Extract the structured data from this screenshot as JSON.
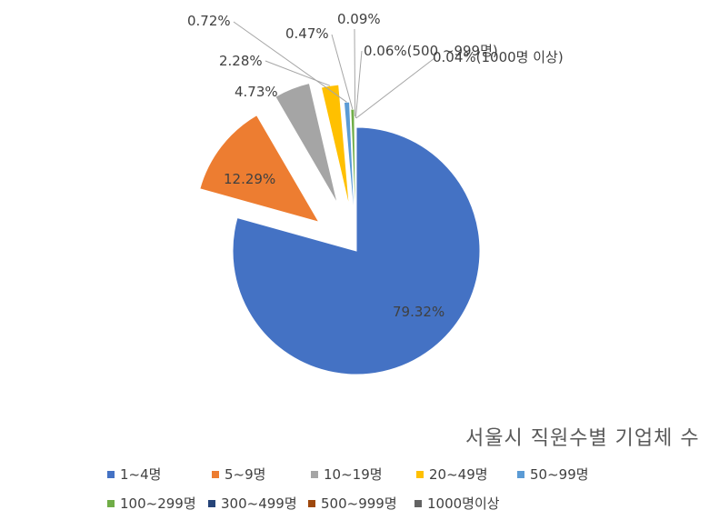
{
  "chart_data": {
    "type": "pie",
    "title": "서울시 직원수별 기업체 수",
    "categories": [
      "1~4명",
      "5~9명",
      "10~19명",
      "20~49명",
      "50~99명",
      "100~299명",
      "300~499명",
      "500~999명",
      "1000명이상"
    ],
    "values": [
      79.32,
      12.29,
      4.73,
      2.28,
      0.72,
      0.47,
      0.09,
      0.06,
      0.04
    ],
    "data_labels": [
      "79.32%",
      "12.29%",
      "4.73%",
      "2.28%",
      "0.72%",
      "0.47%",
      "0.09%",
      "0.06%(500 ~999명)",
      "0.04%(1000명 이상)"
    ],
    "colors": [
      "#4472C4",
      "#ED7D31",
      "#A5A5A5",
      "#FFC000",
      "#5B9BD5",
      "#70AD47",
      "#264478",
      "#9E480E",
      "#636363"
    ],
    "legend_position": "bottom"
  }
}
